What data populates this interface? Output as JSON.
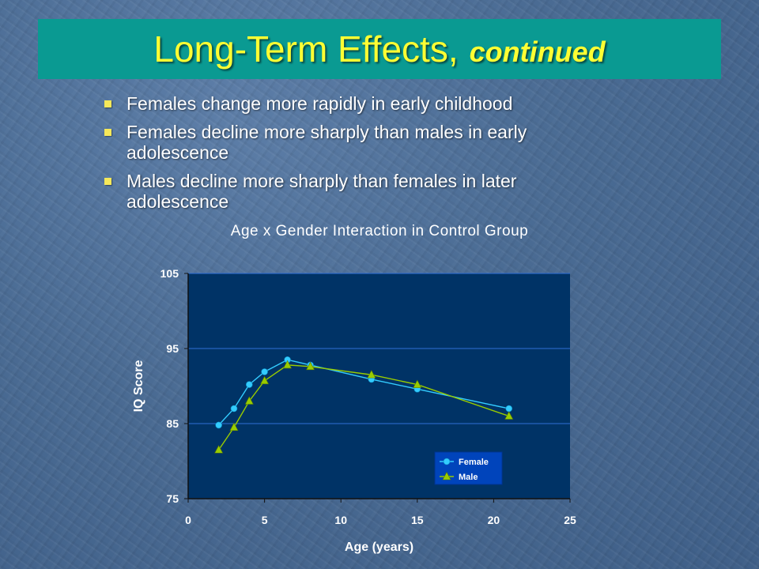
{
  "slide": {
    "title": "Long-Term Effects,",
    "title_continued": "continued",
    "bullets": [
      "Females change more rapidly in early childhood",
      "Females decline more sharply than males in early adolescence",
      "Males decline more sharply than females in later adolescence"
    ]
  },
  "colors": {
    "background": "#4a6b93",
    "title_bar": "#0a9a92",
    "title_text": "#ffff33",
    "plot_area": "#003366",
    "gridline": "#2f6fd6",
    "female": "#33ccff",
    "male": "#99cc00"
  },
  "chart_data": {
    "type": "line",
    "title": "Age x Gender Interaction in Control Group",
    "xlabel": "Age (years)",
    "ylabel": "IQ Score",
    "xlim": [
      0,
      25
    ],
    "ylim": [
      75,
      105
    ],
    "xticks": [
      0,
      5,
      10,
      15,
      20,
      25
    ],
    "yticks": [
      75,
      85,
      95,
      105
    ],
    "grid": "horizontal",
    "legend_position": "bottom-right",
    "series": [
      {
        "name": "Female",
        "marker": "circle",
        "x": [
          2,
          3,
          4,
          5,
          6.5,
          8,
          12,
          15,
          21
        ],
        "y": [
          84.8,
          87.0,
          90.2,
          91.9,
          93.5,
          92.8,
          90.9,
          89.6,
          87.0
        ]
      },
      {
        "name": "Male",
        "marker": "triangle",
        "x": [
          2,
          3,
          4,
          5,
          6.5,
          8,
          12,
          15,
          21
        ],
        "y": [
          81.5,
          84.5,
          88.0,
          90.7,
          92.8,
          92.6,
          91.5,
          90.2,
          86.0
        ]
      }
    ]
  }
}
